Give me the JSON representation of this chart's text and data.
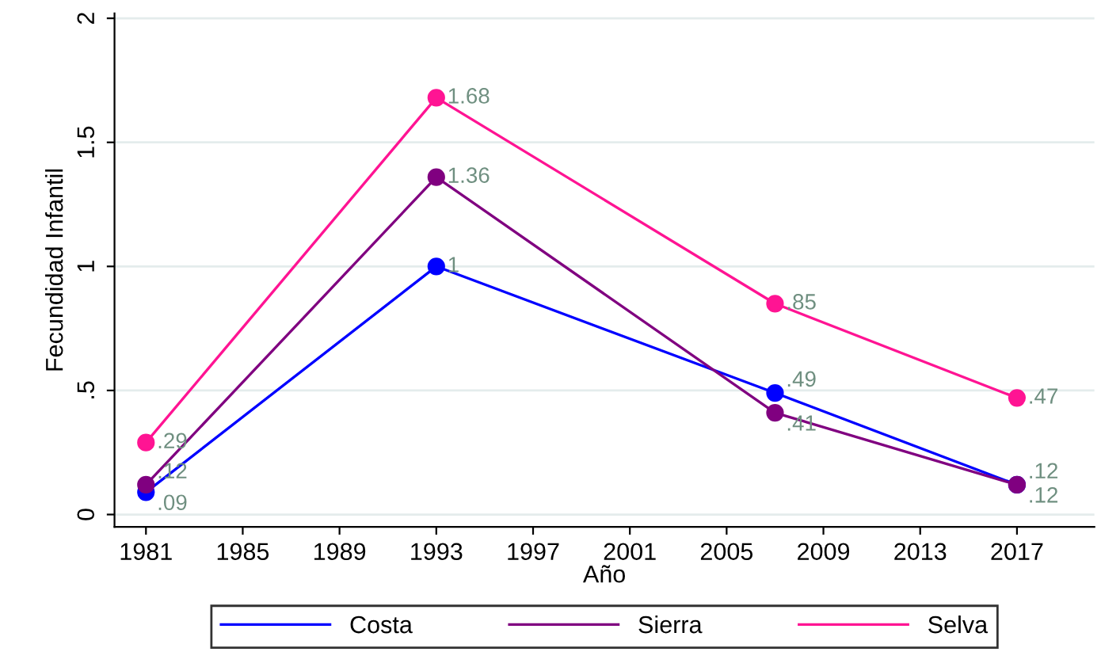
{
  "chart_data": {
    "type": "line",
    "xlabel": "Año",
    "ylabel": "Fecundidad Infantil",
    "x": [
      1981,
      1993,
      2007,
      2017
    ],
    "series": [
      {
        "name": "Costa",
        "color": "#0000ff",
        "values": [
          0.09,
          1,
          0.49,
          0.12
        ],
        "value_labels": [
          ".09",
          "1",
          ".49",
          ".12"
        ]
      },
      {
        "name": "Sierra",
        "color": "#800080",
        "values": [
          0.12,
          1.36,
          0.41,
          0.12
        ],
        "value_labels": [
          ".12",
          "1.36",
          ".41",
          ".12"
        ]
      },
      {
        "name": "Selva",
        "color": "#ff1493",
        "values": [
          0.29,
          1.68,
          0.85,
          0.47
        ],
        "value_labels": [
          ".29",
          "1.68",
          ".85",
          ".47"
        ]
      }
    ],
    "xlim": [
      1979.7,
      2020.2
    ],
    "ylim": [
      -0.05,
      2.02
    ],
    "xticks": [
      1981,
      1985,
      1989,
      1993,
      1997,
      2001,
      2005,
      2009,
      2013,
      2017
    ],
    "yticks": [
      0,
      {
        "value": 0.5,
        "label": ".5"
      },
      1,
      1.5,
      2
    ],
    "grid": "y",
    "legend": "bottom",
    "marker": "circle",
    "line_style": "solid"
  }
}
